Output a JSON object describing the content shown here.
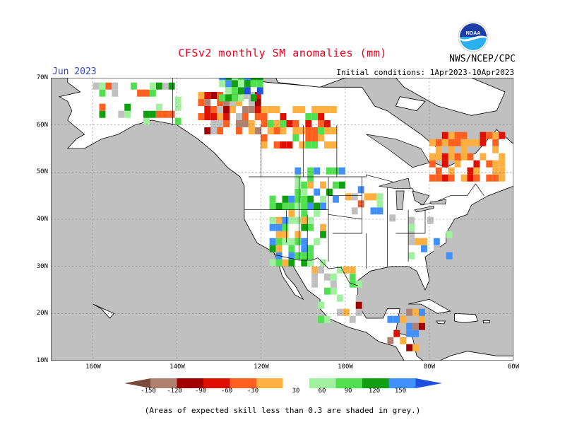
{
  "title": "CFSv2 monthly SM anomalies (mm)",
  "month": "Jun 2023",
  "initial_conditions": "Initial conditions: 1Apr2023-10Apr2023",
  "agency": "NWS/NCEP/CPC",
  "logo_text": "NOAA",
  "footnote": "(Areas of expected skill less than 0.3 are shaded in grey.)",
  "colors": {
    "ocean": "#c0c0c0",
    "land": "#ffffff",
    "title": "#e8001c",
    "month": "#2e44cc"
  },
  "axes": {
    "lat_labels": [
      "70N",
      "60N",
      "50N",
      "40N",
      "30N",
      "20N",
      "10N"
    ],
    "lon_labels": [
      "160W",
      "140W",
      "120W",
      "100W",
      "80W",
      "60W"
    ],
    "lat_range": [
      10,
      70
    ],
    "lon_range": [
      -170,
      -60
    ]
  },
  "legend": {
    "labels": [
      "-150",
      "-120",
      "-90",
      "-60",
      "-30",
      "30",
      "60",
      "90",
      "120",
      "150"
    ],
    "colors": [
      "#7a4a3a",
      "#b08070",
      "#a00000",
      "#e01000",
      "#ff6020",
      "#ffb040",
      "#ffffff",
      "#a0f0a0",
      "#50e050",
      "#10a010",
      "#4090ff",
      "#2050e0"
    ]
  },
  "chart_data": {
    "type": "heatmap",
    "title": "CFSv2 monthly SM anomalies (mm)",
    "lat_range": [
      10,
      70
    ],
    "lon_range": [
      -170,
      -60
    ],
    "levels": [
      -150,
      -120,
      -90,
      -60,
      -30,
      30,
      60,
      90,
      120,
      150
    ],
    "regions": [
      {
        "lon": [
          -135,
          -120
        ],
        "lat": [
          58,
          66
        ],
        "anomaly": "-60 to -150"
      },
      {
        "lon": [
          -120,
          -103
        ],
        "lat": [
          55,
          63
        ],
        "anomaly": "-30 to -90"
      },
      {
        "lon": [
          -80,
          -62
        ],
        "lat": [
          48,
          58
        ],
        "anomaly": "-30 to -90"
      },
      {
        "lon": [
          -118,
          -105
        ],
        "lat": [
          30,
          44
        ],
        "anomaly": "30 to 120"
      },
      {
        "lon": [
          -112,
          -100
        ],
        "lat": [
          42,
          50
        ],
        "anomaly": "30 to 90"
      },
      {
        "lon": [
          -130,
          -120
        ],
        "lat": [
          65,
          70
        ],
        "anomaly": "30 to 150"
      }
    ]
  }
}
